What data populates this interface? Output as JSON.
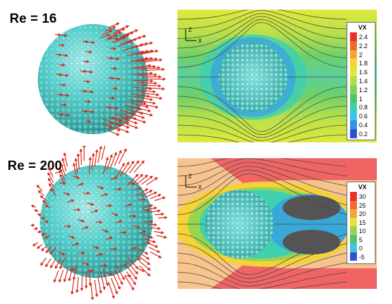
{
  "panels": {
    "top": {
      "label": "Re = 16"
    },
    "bottom": {
      "label": "Re = 200"
    }
  },
  "legend_top": {
    "title": "VX",
    "ticks": [
      "2.4",
      "2.2",
      "2",
      "1.8",
      "1.6",
      "1.4",
      "1.2",
      "1",
      "0.8",
      "0.6",
      "0.4",
      "0.2"
    ],
    "colors": [
      "#e8322a",
      "#f06a2a",
      "#f7a430",
      "#f5d23a",
      "#dfe83c",
      "#b1e04a",
      "#7fd35a",
      "#4fc46a",
      "#3fd0b0",
      "#38c6e0",
      "#3a8ee6",
      "#2c4fd6"
    ]
  },
  "legend_bottom": {
    "title": "VX",
    "ticks": [
      "30",
      "25",
      "20",
      "15",
      "10",
      "5",
      "0",
      "-5"
    ],
    "colors": [
      "#e8322a",
      "#f06a2a",
      "#f7a430",
      "#e6e23c",
      "#9ad44e",
      "#4fc46a",
      "#38c6e0",
      "#2c4fd6"
    ]
  },
  "axis_labels": {
    "z": "Z",
    "x": "X"
  },
  "colors": {
    "sphere": "#5ed6d2",
    "arrows": "#d42a1c",
    "streamline": "#4a4a4a",
    "wake": "#555555"
  }
}
